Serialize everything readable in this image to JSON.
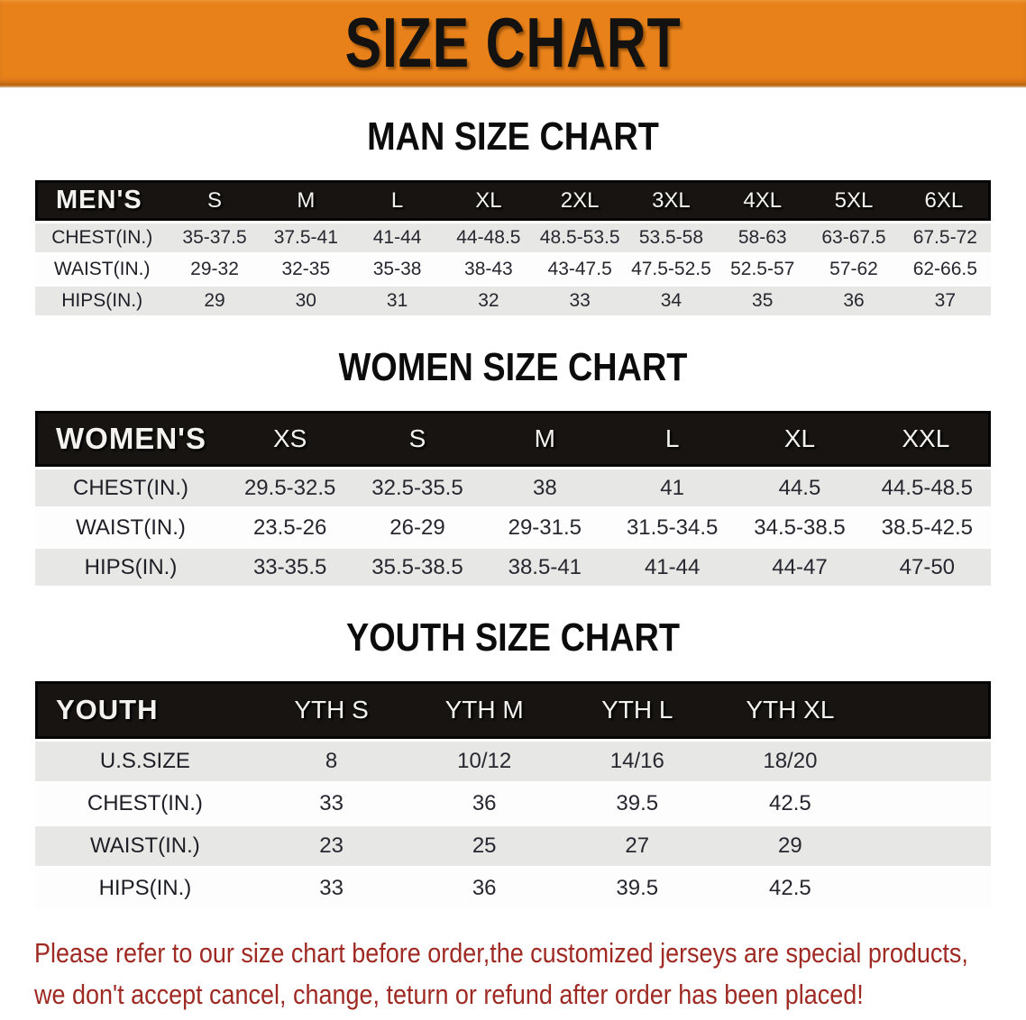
{
  "banner": {
    "title": "SIZE CHART",
    "bg_color": "#E8811A",
    "text_color": "#141210"
  },
  "sections": [
    {
      "key": "mens",
      "title": "MAN SIZE CHART",
      "group_label": "MEN'S",
      "columns": [
        "S",
        "M",
        "L",
        "XL",
        "2XL",
        "3XL",
        "4XL",
        "5XL",
        "6XL"
      ],
      "rows": [
        {
          "label": "CHEST(IN.)",
          "values": [
            "35-37.5",
            "37.5-41",
            "41-44",
            "44-48.5",
            "48.5-53.5",
            "53.5-58",
            "58-63",
            "63-67.5",
            "67.5-72"
          ]
        },
        {
          "label": "WAIST(IN.)",
          "values": [
            "29-32",
            "32-35",
            "35-38",
            "38-43",
            "43-47.5",
            "47.5-52.5",
            "52.5-57",
            "57-62",
            "62-66.5"
          ]
        },
        {
          "label": "HIPS(IN.)",
          "values": [
            "29",
            "30",
            "31",
            "32",
            "33",
            "34",
            "35",
            "36",
            "37"
          ]
        }
      ]
    },
    {
      "key": "womens",
      "title": "WOMEN SIZE CHART",
      "group_label": "WOMEN'S",
      "columns": [
        "XS",
        "S",
        "M",
        "L",
        "XL",
        "XXL"
      ],
      "rows": [
        {
          "label": "CHEST(IN.)",
          "values": [
            "29.5-32.5",
            "32.5-35.5",
            "38",
            "41",
            "44.5",
            "44.5-48.5"
          ]
        },
        {
          "label": "WAIST(IN.)",
          "values": [
            "23.5-26",
            "26-29",
            "29-31.5",
            "31.5-34.5",
            "34.5-38.5",
            "38.5-42.5"
          ]
        },
        {
          "label": "HIPS(IN.)",
          "values": [
            "33-35.5",
            "35.5-38.5",
            "38.5-41",
            "41-44",
            "44-47",
            "47-50"
          ]
        }
      ]
    },
    {
      "key": "youth",
      "title": "YOUTH SIZE CHART",
      "group_label": "YOUTH",
      "columns": [
        "YTH S",
        "YTH M",
        "YTH L",
        "YTH XL"
      ],
      "rows": [
        {
          "label": "U.S.SIZE",
          "values": [
            "8",
            "10/12",
            "14/16",
            "18/20"
          ]
        },
        {
          "label": "CHEST(IN.)",
          "values": [
            "33",
            "36",
            "39.5",
            "42.5"
          ]
        },
        {
          "label": "WAIST(IN.)",
          "values": [
            "23",
            "25",
            "27",
            "29"
          ]
        },
        {
          "label": "HIPS(IN.)",
          "values": [
            "33",
            "36",
            "39.5",
            "42.5"
          ]
        }
      ]
    }
  ],
  "footer": {
    "lines": [
      "Please refer to our size chart before order,the customized jerseys are special products,",
      "we don't accept cancel, change, teturn or refund after order has been placed!"
    ],
    "color": "#9E2A23"
  }
}
